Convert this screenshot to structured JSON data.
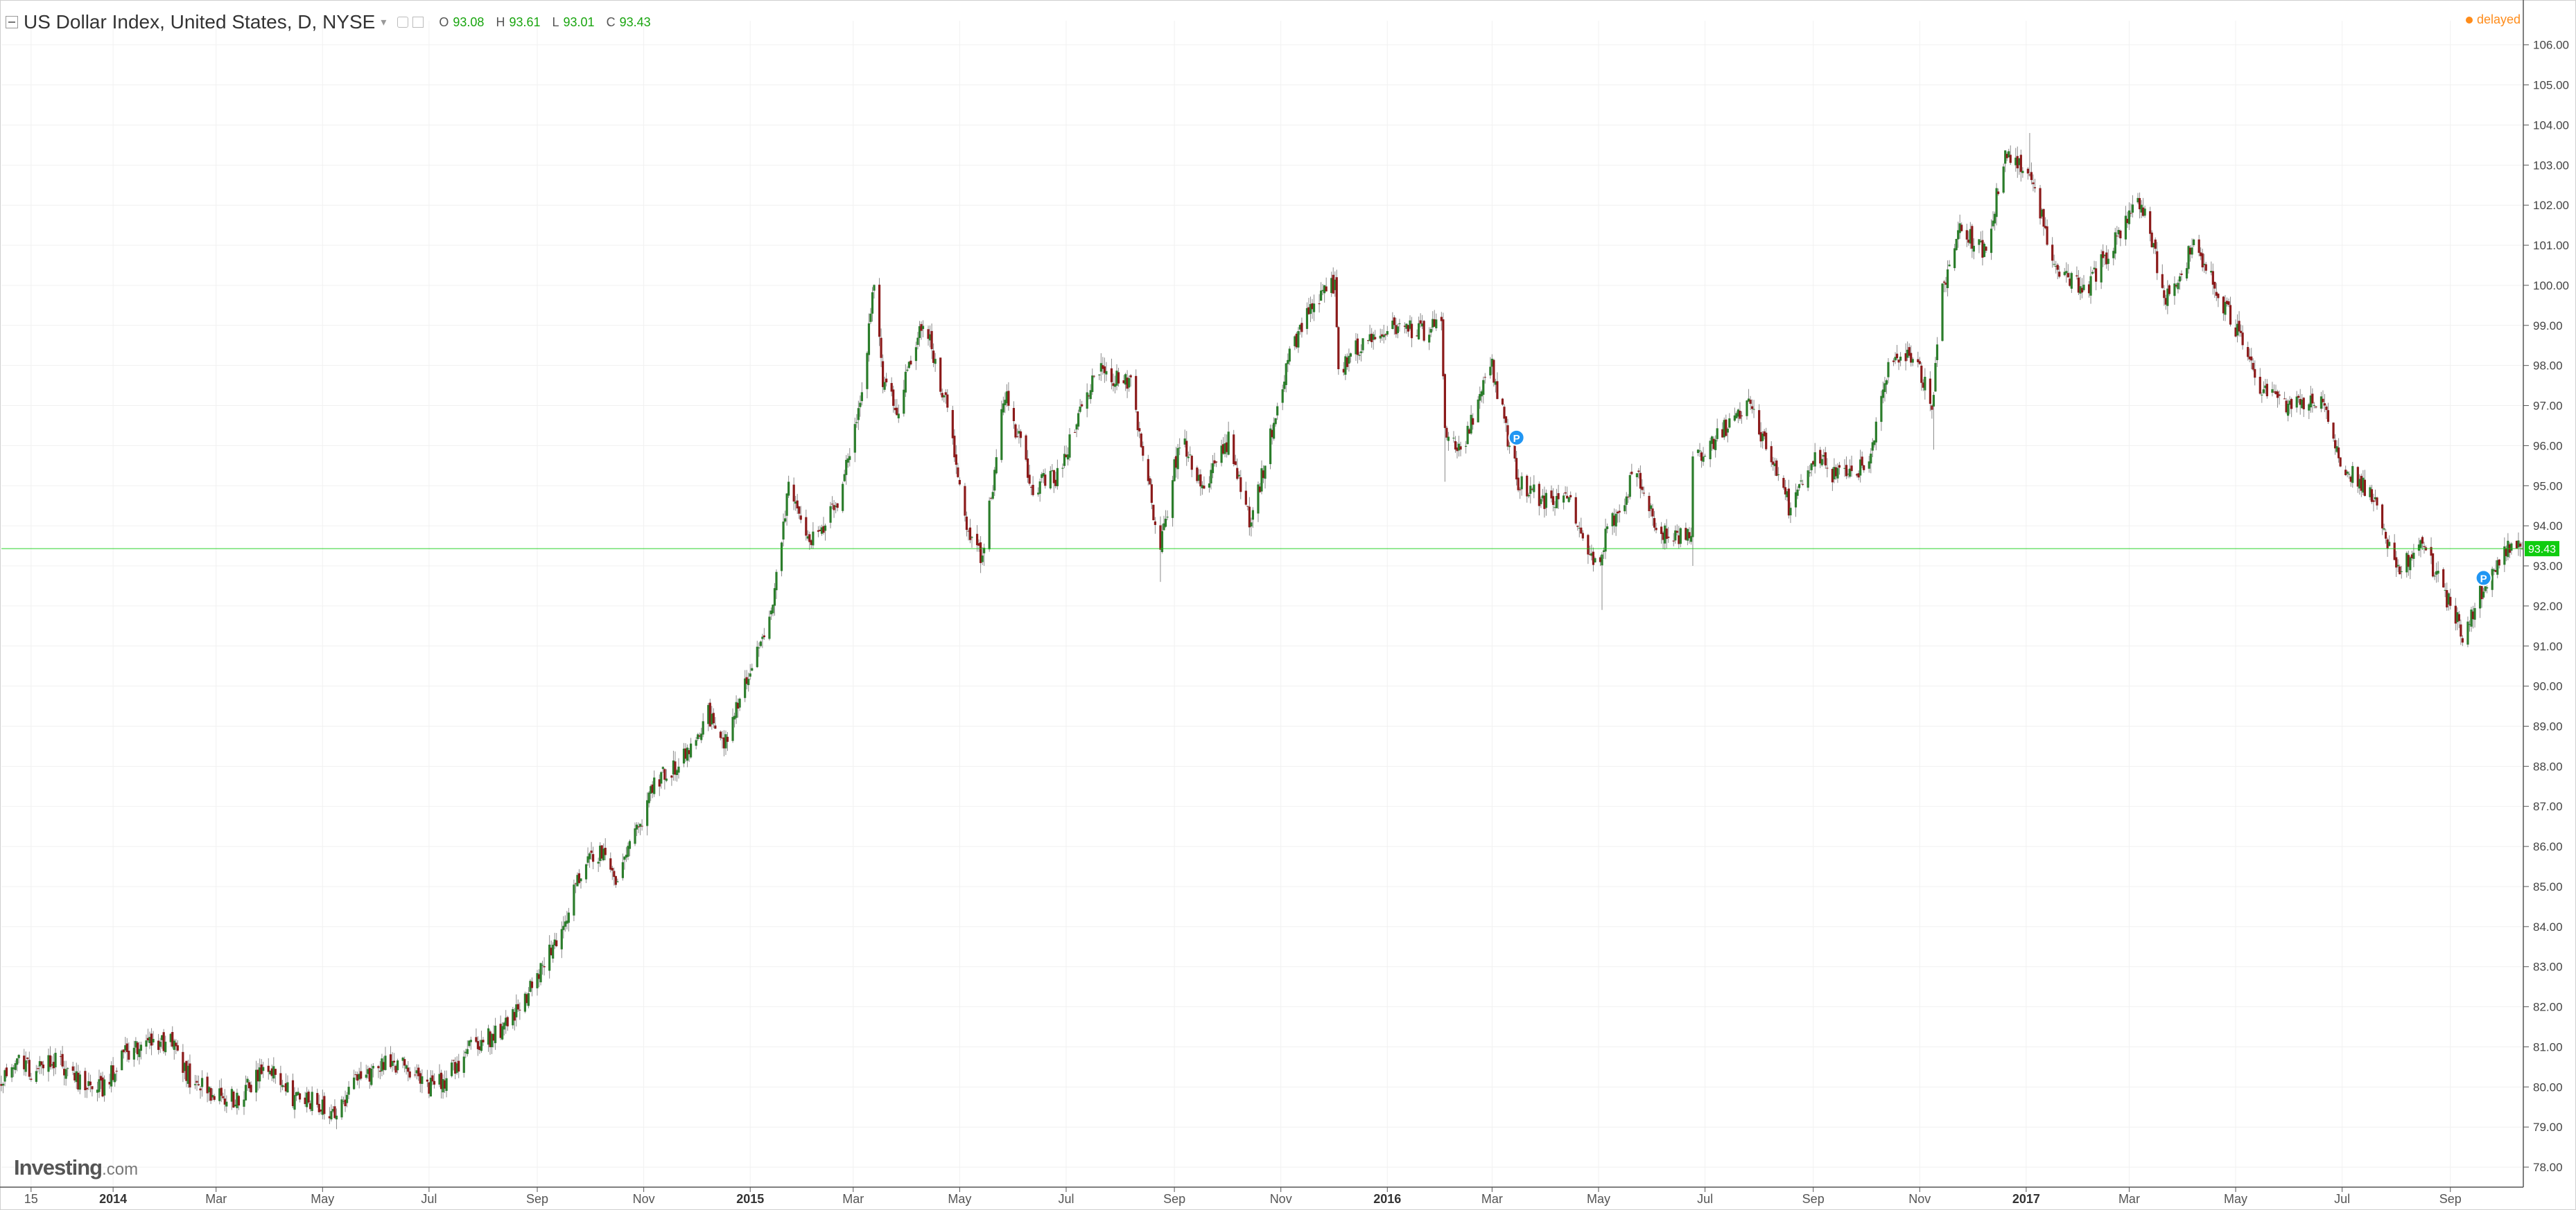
{
  "header": {
    "title": "US Dollar Index, United States, D, NYSE",
    "ohlc": [
      {
        "key": "O",
        "value": "93.08"
      },
      {
        "key": "H",
        "value": "93.61"
      },
      {
        "key": "L",
        "value": "93.01"
      },
      {
        "key": "C",
        "value": "93.43"
      }
    ],
    "status": "delayed"
  },
  "branding": {
    "logo": "Investing",
    "logo_suffix": ".com"
  },
  "colors": {
    "up": "#2b7d2b",
    "down": "#8b1a1a",
    "last_price": "#0fcc0f",
    "grid": "#f1f1f1",
    "marker": "#2196f3",
    "status": "#ff8c1a"
  },
  "chart_data": {
    "type": "candlestick",
    "title": "US Dollar Index, United States, D, NYSE",
    "ylim": [
      77.5,
      106.6
    ],
    "y_ticks": [
      "78.00",
      "79.00",
      "80.00",
      "81.00",
      "82.00",
      "83.00",
      "84.00",
      "85.00",
      "86.00",
      "87.00",
      "88.00",
      "89.00",
      "90.00",
      "91.00",
      "92.00",
      "93.00",
      "94.00",
      "95.00",
      "96.00",
      "97.00",
      "98.00",
      "99.00",
      "100.00",
      "101.00",
      "102.00",
      "103.00",
      "104.00",
      "105.00",
      "106.00"
    ],
    "x_labels": [
      {
        "label": "15",
        "date": "2013-11-15",
        "bold": false
      },
      {
        "label": "2014",
        "date": "2014-01-01",
        "bold": true
      },
      {
        "label": "Mar",
        "date": "2014-03-01",
        "bold": false
      },
      {
        "label": "May",
        "date": "2014-05-01",
        "bold": false
      },
      {
        "label": "Jul",
        "date": "2014-07-01",
        "bold": false
      },
      {
        "label": "Sep",
        "date": "2014-09-01",
        "bold": false
      },
      {
        "label": "Nov",
        "date": "2014-11-01",
        "bold": false
      },
      {
        "label": "2015",
        "date": "2015-01-01",
        "bold": true
      },
      {
        "label": "Mar",
        "date": "2015-03-01",
        "bold": false
      },
      {
        "label": "May",
        "date": "2015-05-01",
        "bold": false
      },
      {
        "label": "Jul",
        "date": "2015-07-01",
        "bold": false
      },
      {
        "label": "Sep",
        "date": "2015-09-01",
        "bold": false
      },
      {
        "label": "Nov",
        "date": "2015-11-01",
        "bold": false
      },
      {
        "label": "2016",
        "date": "2016-01-01",
        "bold": true
      },
      {
        "label": "Mar",
        "date": "2016-03-01",
        "bold": false
      },
      {
        "label": "May",
        "date": "2016-05-01",
        "bold": false
      },
      {
        "label": "Jul",
        "date": "2016-07-01",
        "bold": false
      },
      {
        "label": "Sep",
        "date": "2016-09-01",
        "bold": false
      },
      {
        "label": "Nov",
        "date": "2016-11-01",
        "bold": false
      },
      {
        "label": "2017",
        "date": "2017-01-01",
        "bold": true
      },
      {
        "label": "Mar",
        "date": "2017-03-01",
        "bold": false
      },
      {
        "label": "May",
        "date": "2017-05-01",
        "bold": false
      },
      {
        "label": "Jul",
        "date": "2017-07-01",
        "bold": false
      },
      {
        "label": "Sep",
        "date": "2017-09-01",
        "bold": false
      }
    ],
    "x_range": [
      "2013-10-29",
      "2017-10-12"
    ],
    "last_price": {
      "value": 93.43,
      "label": "93.43"
    },
    "markers": [
      {
        "date": "2016-03-15",
        "price": 96.2,
        "label": "P"
      },
      {
        "date": "2017-09-20",
        "price": 92.7,
        "label": "P"
      }
    ],
    "grid": true,
    "close_path": [
      [
        "2013-10-29",
        80.0
      ],
      [
        "2013-11-08",
        80.9
      ],
      [
        "2013-11-15",
        80.4
      ],
      [
        "2013-11-28",
        80.7
      ],
      [
        "2013-12-10",
        80.2
      ],
      [
        "2013-12-27",
        80.0
      ],
      [
        "2014-01-08",
        80.9
      ],
      [
        "2014-01-21",
        81.0
      ],
      [
        "2014-02-03",
        81.2
      ],
      [
        "2014-02-14",
        80.2
      ],
      [
        "2014-02-28",
        79.8
      ],
      [
        "2014-03-13",
        79.7
      ],
      [
        "2014-03-25",
        80.3
      ],
      [
        "2014-04-04",
        80.3
      ],
      [
        "2014-04-15",
        79.7
      ],
      [
        "2014-04-30",
        79.6
      ],
      [
        "2014-05-08",
        79.2
      ],
      [
        "2014-05-22",
        80.2
      ],
      [
        "2014-06-05",
        80.6
      ],
      [
        "2014-06-17",
        80.6
      ],
      [
        "2014-06-30",
        80.0
      ],
      [
        "2014-07-10",
        80.2
      ],
      [
        "2014-07-25",
        81.0
      ],
      [
        "2014-08-08",
        81.3
      ],
      [
        "2014-08-22",
        82.0
      ],
      [
        "2014-09-05",
        83.0
      ],
      [
        "2014-09-19",
        84.5
      ],
      [
        "2014-09-30",
        85.8
      ],
      [
        "2014-10-10",
        85.8
      ],
      [
        "2014-10-16",
        85.2
      ],
      [
        "2014-10-30",
        86.5
      ],
      [
        "2014-11-07",
        87.6
      ],
      [
        "2014-11-21",
        88.0
      ],
      [
        "2014-12-08",
        89.3
      ],
      [
        "2014-12-16",
        88.5
      ],
      [
        "2014-12-31",
        90.2
      ],
      [
        "2015-01-14",
        92.0
      ],
      [
        "2015-01-23",
        94.9
      ],
      [
        "2015-02-05",
        93.6
      ],
      [
        "2015-02-20",
        94.5
      ],
      [
        "2015-03-05",
        97.0
      ],
      [
        "2015-03-13",
        100.0
      ],
      [
        "2015-03-18",
        97.7
      ],
      [
        "2015-03-26",
        96.8
      ],
      [
        "2015-04-10",
        99.2
      ],
      [
        "2015-04-24",
        96.9
      ],
      [
        "2015-05-06",
        93.8
      ],
      [
        "2015-05-14",
        93.2
      ],
      [
        "2015-05-27",
        97.3
      ],
      [
        "2015-06-12",
        95.0
      ],
      [
        "2015-06-26",
        95.2
      ],
      [
        "2015-07-07",
        96.7
      ],
      [
        "2015-07-20",
        97.9
      ],
      [
        "2015-08-07",
        97.5
      ],
      [
        "2015-08-24",
        93.4
      ],
      [
        "2015-09-04",
        96.2
      ],
      [
        "2015-09-18",
        95.0
      ],
      [
        "2015-10-02",
        96.1
      ],
      [
        "2015-10-15",
        94.0
      ],
      [
        "2015-11-04",
        98.0
      ],
      [
        "2015-11-20",
        99.6
      ],
      [
        "2015-12-02",
        100.0
      ],
      [
        "2015-12-04",
        97.9
      ],
      [
        "2015-12-18",
        98.6
      ],
      [
        "2016-01-04",
        99.0
      ],
      [
        "2016-01-20",
        98.8
      ],
      [
        "2016-02-01",
        99.2
      ],
      [
        "2016-02-03",
        96.5
      ],
      [
        "2016-02-12",
        95.8
      ],
      [
        "2016-03-01",
        98.0
      ],
      [
        "2016-03-10",
        96.2
      ],
      [
        "2016-03-16",
        95.1
      ],
      [
        "2016-04-01",
        94.6
      ],
      [
        "2016-04-15",
        94.6
      ],
      [
        "2016-04-29",
        93.0
      ],
      [
        "2016-05-06",
        93.8
      ],
      [
        "2016-05-23",
        95.4
      ],
      [
        "2016-06-03",
        93.9
      ],
      [
        "2016-06-23",
        93.7
      ],
      [
        "2016-06-24",
        95.5
      ],
      [
        "2016-07-08",
        96.2
      ],
      [
        "2016-07-25",
        97.1
      ],
      [
        "2016-08-05",
        96.0
      ],
      [
        "2016-08-18",
        94.5
      ],
      [
        "2016-09-02",
        95.8
      ],
      [
        "2016-09-14",
        95.2
      ],
      [
        "2016-10-03",
        95.5
      ],
      [
        "2016-10-14",
        98.0
      ],
      [
        "2016-10-28",
        98.3
      ],
      [
        "2016-11-08",
        97.0
      ],
      [
        "2016-11-14",
        99.9
      ],
      [
        "2016-11-24",
        101.5
      ],
      [
        "2016-12-08",
        100.8
      ],
      [
        "2016-12-20",
        103.2
      ],
      [
        "2017-01-03",
        102.9
      ],
      [
        "2017-01-17",
        100.6
      ],
      [
        "2017-02-03",
        99.8
      ],
      [
        "2017-02-14",
        100.6
      ],
      [
        "2017-03-01",
        101.8
      ],
      [
        "2017-03-08",
        102.0
      ],
      [
        "2017-03-22",
        99.7
      ],
      [
        "2017-04-07",
        101.0
      ],
      [
        "2017-04-21",
        99.8
      ],
      [
        "2017-05-05",
        98.6
      ],
      [
        "2017-05-16",
        97.4
      ],
      [
        "2017-05-31",
        97.0
      ],
      [
        "2017-06-19",
        97.2
      ],
      [
        "2017-06-30",
        95.6
      ],
      [
        "2017-07-18",
        94.8
      ],
      [
        "2017-08-02",
        92.9
      ],
      [
        "2017-08-15",
        93.6
      ],
      [
        "2017-08-29",
        92.3
      ],
      [
        "2017-09-08",
        91.3
      ],
      [
        "2017-09-20",
        92.5
      ],
      [
        "2017-10-06",
        93.6
      ],
      [
        "2017-10-12",
        93.43
      ]
    ],
    "wick_spikes": [
      {
        "date": "2015-05-15",
        "low": 93.0
      },
      {
        "date": "2015-08-24",
        "low": 92.6
      },
      {
        "date": "2016-02-03",
        "low": 95.1
      },
      {
        "date": "2016-05-03",
        "low": 91.9
      },
      {
        "date": "2016-06-24",
        "low": 93.0
      },
      {
        "date": "2016-11-09",
        "low": 95.9
      },
      {
        "date": "2017-01-03",
        "high": 103.8
      },
      {
        "date": "2017-09-08",
        "low": 91.0
      }
    ]
  }
}
